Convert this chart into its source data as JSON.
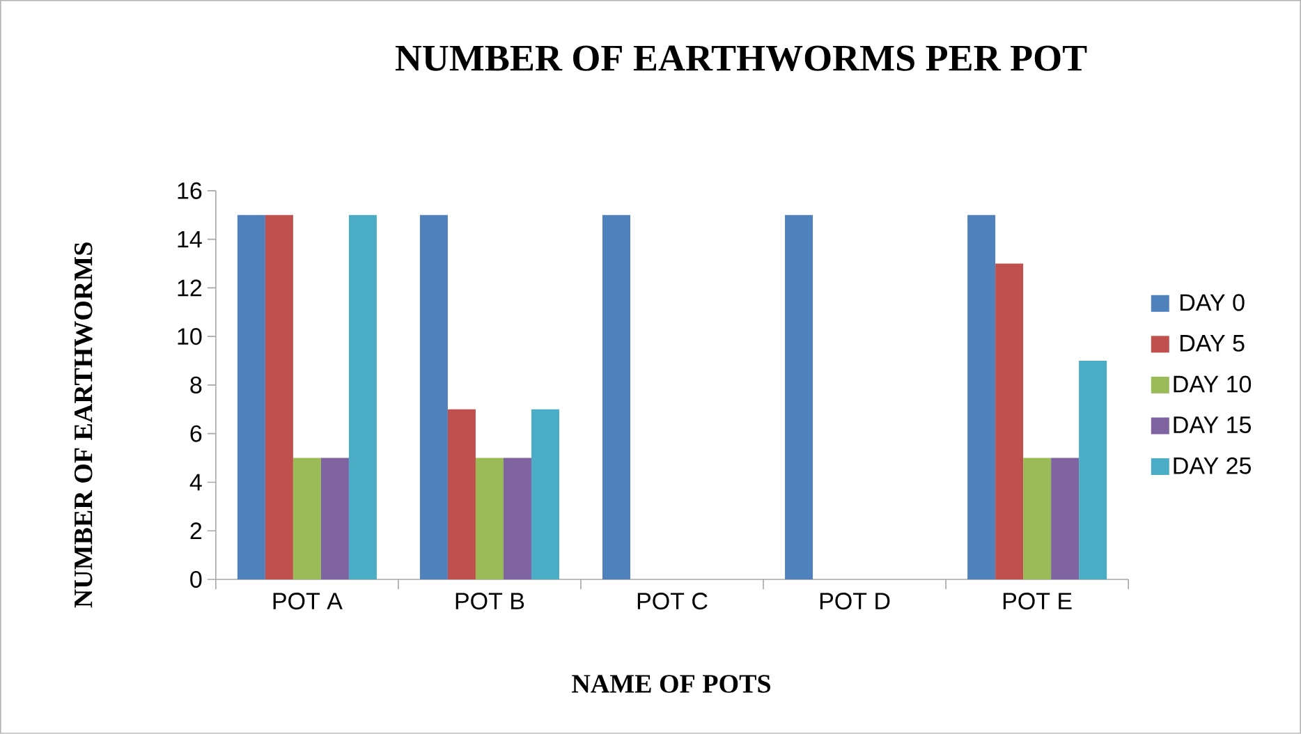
{
  "chart_data": {
    "type": "bar",
    "title": "NUMBER OF EARTHWORMS PER POT",
    "xlabel": "NAME OF POTS",
    "ylabel": "NUMBER OF EARTHWORMS",
    "categories": [
      "POT A",
      "POT B",
      "POT C",
      "POT D",
      "POT E"
    ],
    "series": [
      {
        "name": "DAY 0",
        "color": "#4f81bd",
        "values": [
          15,
          15,
          15,
          15,
          15
        ]
      },
      {
        "name": "DAY 5",
        "color": "#c0504d",
        "values": [
          15,
          7,
          0,
          0,
          13
        ]
      },
      {
        "name": "DAY 10",
        "color": "#9bbb59",
        "values": [
          5,
          5,
          0,
          0,
          5
        ]
      },
      {
        "name": "DAY 15",
        "color": "#8064a2",
        "values": [
          5,
          5,
          0,
          0,
          5
        ]
      },
      {
        "name": "DAY 25",
        "color": "#4bacc6",
        "values": [
          15,
          7,
          0,
          0,
          9
        ]
      }
    ],
    "ylim": [
      0,
      16
    ],
    "yticks": [
      0,
      2,
      4,
      6,
      8,
      10,
      12,
      14,
      16
    ],
    "grid": false,
    "legend": "right"
  }
}
